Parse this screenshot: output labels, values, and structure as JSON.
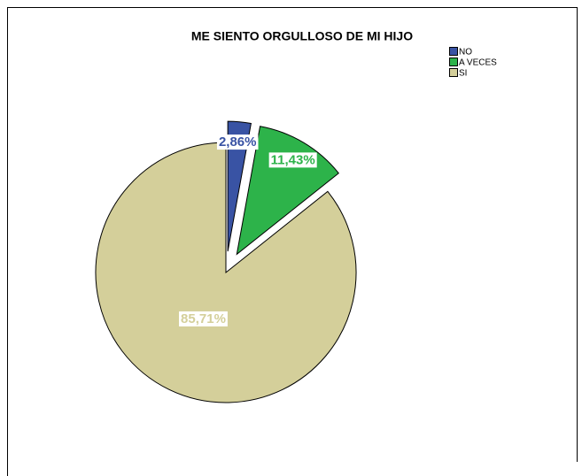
{
  "chart_data": {
    "type": "pie",
    "title": "ME SIENTO ORGULLOSO DE MI HIJO",
    "categories": [
      "NO",
      "A VECES",
      "SI"
    ],
    "values": [
      2.86,
      11.43,
      85.71
    ],
    "value_labels": [
      "2,86%",
      "11,43%",
      "85,71%"
    ],
    "colors": [
      "#3953a4",
      "#2db34a",
      "#d4cf9a"
    ],
    "exploded": [
      true,
      true,
      false
    ],
    "legend": "top-right"
  }
}
